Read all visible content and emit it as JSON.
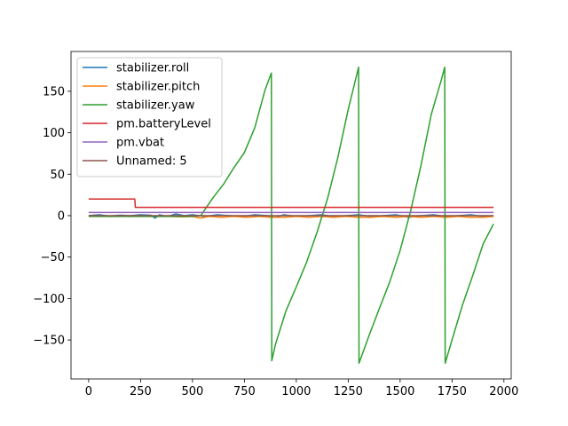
{
  "chart_data": {
    "type": "line",
    "title": "",
    "xlabel": "",
    "ylabel": "",
    "xlim": [
      -85,
      2035
    ],
    "ylim": [
      -197,
      198
    ],
    "xticks": [
      0,
      250,
      500,
      750,
      1000,
      1250,
      1500,
      1750,
      2000
    ],
    "xtick_labels": [
      "0",
      "250",
      "500",
      "750",
      "1000",
      "1250",
      "1500",
      "1750",
      "2000"
    ],
    "yticks": [
      -150,
      -100,
      -50,
      0,
      50,
      100,
      150
    ],
    "ytick_labels": [
      "−150",
      "−100",
      "−50",
      "0",
      "50",
      "100",
      "150"
    ],
    "grid": false,
    "legend_position": "upper-left",
    "series": [
      {
        "name": "stabilizer.roll",
        "color": "#1f77b4",
        "x": [
          0,
          50,
          100,
          150,
          200,
          250,
          300,
          320,
          340,
          380,
          420,
          460,
          500,
          560,
          620,
          680,
          740,
          800,
          860,
          900,
          940,
          1000,
          1060,
          1120,
          1180,
          1240,
          1300,
          1360,
          1420,
          1480,
          1540,
          1600,
          1660,
          1720,
          1780,
          1840,
          1900,
          1950
        ],
        "values": [
          0,
          1,
          -0.5,
          0.5,
          0,
          1,
          0.5,
          -3,
          1,
          -1,
          2,
          0,
          1,
          -1,
          1,
          0,
          -1,
          1,
          0,
          -2,
          1,
          -1,
          0,
          1,
          -1,
          0,
          1,
          -1,
          0,
          1,
          -2,
          0,
          1,
          -1,
          0,
          1,
          -1,
          0
        ]
      },
      {
        "name": "stabilizer.pitch",
        "color": "#ff7f0e",
        "x": [
          0,
          50,
          100,
          150,
          200,
          250,
          300,
          350,
          400,
          450,
          500,
          540,
          580,
          640,
          700,
          760,
          820,
          880,
          940,
          1000,
          1060,
          1120,
          1180,
          1240,
          1300,
          1360,
          1420,
          1480,
          1540,
          1600,
          1660,
          1720,
          1780,
          1840,
          1900,
          1950
        ],
        "values": [
          -1,
          -0.5,
          -1,
          -0.5,
          -1,
          -0.5,
          -1,
          -0.5,
          -1,
          -1.5,
          -1,
          -3,
          -1,
          -2,
          -1,
          -2,
          -1,
          -2,
          -2,
          -1,
          -2,
          -1,
          -2,
          -1,
          -2,
          -2,
          -1,
          -2,
          -1,
          -2,
          -1,
          -2,
          -1,
          -2,
          -2,
          -1
        ]
      },
      {
        "name": "stabilizer.yaw",
        "color": "#2ca02c",
        "x": [
          0,
          100,
          200,
          300,
          400,
          500,
          540,
          600,
          650,
          700,
          750,
          800,
          850,
          880,
          882,
          900,
          950,
          1000,
          1050,
          1100,
          1150,
          1200,
          1250,
          1300,
          1302,
          1350,
          1400,
          1450,
          1500,
          1550,
          1600,
          1650,
          1700,
          1715,
          1717,
          1750,
          1800,
          1850,
          1900,
          1950
        ],
        "values": [
          -1,
          -1,
          -1,
          -1,
          -1,
          -1,
          0,
          22,
          38,
          58,
          76,
          106,
          152,
          172,
          -175,
          -155,
          -115,
          -86,
          -56,
          -20,
          20,
          70,
          128,
          179,
          -178,
          -145,
          -112,
          -80,
          -42,
          5,
          60,
          122,
          165,
          179,
          -178,
          -150,
          -108,
          -72,
          -34,
          -10
        ]
      },
      {
        "name": "pm.batteryLevel",
        "color": "#d62728",
        "x": [
          0,
          222,
          225,
          1950
        ],
        "values": [
          20,
          20,
          10,
          10
        ]
      },
      {
        "name": "pm.vbat",
        "color": "#9467bd",
        "x": [
          0,
          1950
        ],
        "values": [
          3.9,
          3.9
        ]
      },
      {
        "name": "Unnamed: 5",
        "color": "#8c564b",
        "x": [
          0,
          1950
        ],
        "values": [
          0,
          0
        ]
      }
    ]
  }
}
